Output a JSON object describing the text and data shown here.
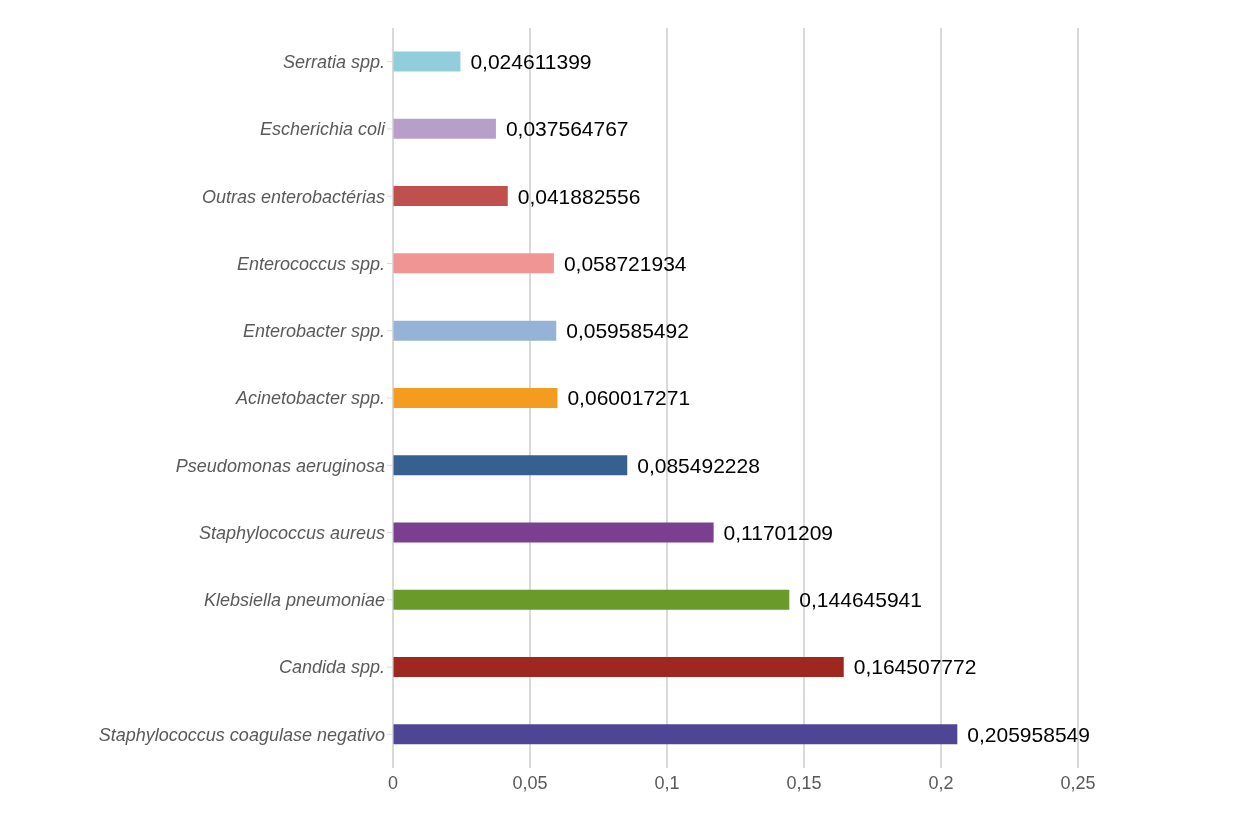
{
  "chart_data": {
    "type": "bar",
    "orientation": "horizontal",
    "categories": [
      "Serratia spp.",
      "Escherichia coli",
      "Outras enterobactérias",
      "Enterococcus spp.",
      "Enterobacter spp.",
      "Acinetobacter spp.",
      "Pseudomonas aeruginosa",
      "Staphylococcus aureus",
      "Klebsiella pneumoniae",
      "Candida spp.",
      "Staphylococcus coagulase negativo"
    ],
    "values": [
      0.024611399,
      0.037564767,
      0.041882556,
      0.058721934,
      0.059585492,
      0.060017271,
      0.085492228,
      0.11701209,
      0.144645941,
      0.164507772,
      0.205958549
    ],
    "value_labels": [
      "0,024611399",
      "0,037564767",
      "0,041882556",
      "0,058721934",
      "0,059585492",
      "0,060017271",
      "0,085492228",
      "0,11701209",
      "0,144645941",
      "0,164507772",
      "0,205958549"
    ],
    "colors": [
      "#92cddc",
      "#b79fc9",
      "#c0504d",
      "#f19594",
      "#95b3d7",
      "#f39c1f",
      "#35608f",
      "#7b3f91",
      "#6a9a2a",
      "#9e2720",
      "#4f4595"
    ],
    "xlim": [
      0,
      0.25
    ],
    "xticks": [
      0,
      {
        "value": 0.05,
        "label": "0,05"
      },
      {
        "value": 0.1,
        "label": "0,1"
      },
      {
        "value": 0.15,
        "label": "0,15"
      },
      {
        "value": 0.2,
        "label": "0,2"
      },
      {
        "value": 0.25,
        "label": "0,25"
      }
    ],
    "grid": "x"
  }
}
